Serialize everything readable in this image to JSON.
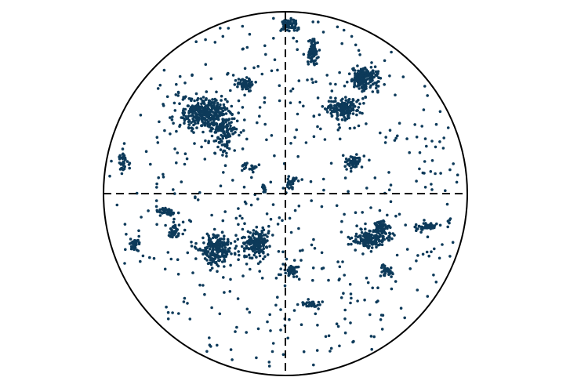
{
  "chart_data": {
    "type": "scatter",
    "projection": "stereonet",
    "grid": false,
    "crosshair": true,
    "colors": {
      "points": "#0d3a5a",
      "outline": "#000000"
    },
    "clusters": [
      {
        "x": 0.02,
        "y": 0.93,
        "rx": 0.035,
        "ry": 0.03,
        "n": 70
      },
      {
        "x": 0.15,
        "y": 0.78,
        "rx": 0.03,
        "ry": 0.06,
        "n": 70
      },
      {
        "x": -0.22,
        "y": 0.6,
        "rx": 0.04,
        "ry": 0.03,
        "n": 60
      },
      {
        "x": -0.45,
        "y": 0.44,
        "rx": 0.11,
        "ry": 0.08,
        "n": 320
      },
      {
        "x": -0.33,
        "y": 0.35,
        "rx": 0.05,
        "ry": 0.09,
        "n": 120
      },
      {
        "x": 0.43,
        "y": 0.63,
        "rx": 0.07,
        "ry": 0.05,
        "n": 180
      },
      {
        "x": 0.32,
        "y": 0.47,
        "rx": 0.08,
        "ry": 0.05,
        "n": 150
      },
      {
        "x": 0.37,
        "y": 0.17,
        "rx": 0.035,
        "ry": 0.03,
        "n": 50
      },
      {
        "x": -0.89,
        "y": 0.18,
        "rx": 0.02,
        "ry": 0.05,
        "n": 40
      },
      {
        "x": -0.19,
        "y": 0.15,
        "rx": 0.03,
        "ry": 0.02,
        "n": 20
      },
      {
        "x": -0.12,
        "y": 0.02,
        "rx": 0.015,
        "ry": 0.015,
        "n": 12
      },
      {
        "x": 0.03,
        "y": 0.06,
        "rx": 0.02,
        "ry": 0.03,
        "n": 25
      },
      {
        "x": -0.65,
        "y": -0.1,
        "rx": 0.05,
        "ry": 0.02,
        "n": 40
      },
      {
        "x": -0.61,
        "y": -0.2,
        "rx": 0.03,
        "ry": 0.04,
        "n": 35
      },
      {
        "x": -0.83,
        "y": -0.28,
        "rx": 0.03,
        "ry": 0.03,
        "n": 40
      },
      {
        "x": -0.38,
        "y": -0.31,
        "rx": 0.07,
        "ry": 0.07,
        "n": 200
      },
      {
        "x": -0.16,
        "y": -0.27,
        "rx": 0.06,
        "ry": 0.07,
        "n": 150
      },
      {
        "x": 0.48,
        "y": -0.25,
        "rx": 0.08,
        "ry": 0.04,
        "n": 150
      },
      {
        "x": 0.52,
        "y": -0.18,
        "rx": 0.04,
        "ry": 0.025,
        "n": 60
      },
      {
        "x": 0.03,
        "y": -0.42,
        "rx": 0.03,
        "ry": 0.025,
        "n": 45
      },
      {
        "x": 0.55,
        "y": -0.42,
        "rx": 0.03,
        "ry": 0.03,
        "n": 35
      },
      {
        "x": 0.15,
        "y": -0.61,
        "rx": 0.04,
        "ry": 0.015,
        "n": 35
      },
      {
        "x": 0.78,
        "y": -0.18,
        "rx": 0.05,
        "ry": 0.015,
        "n": 50
      }
    ],
    "scatter_count": 520
  }
}
